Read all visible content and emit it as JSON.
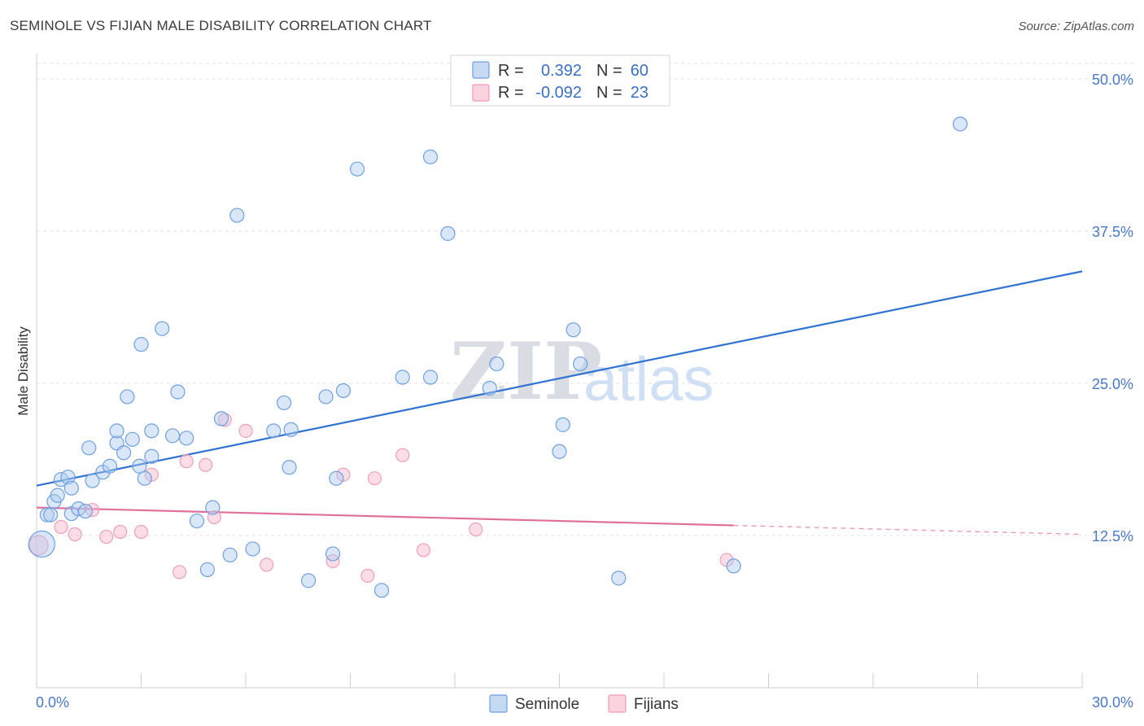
{
  "header": {
    "title": "SEMINOLE VS FIJIAN MALE DISABILITY CORRELATION CHART",
    "source": "Source: ZipAtlas.com"
  },
  "watermark": {
    "zip": "ZIP",
    "atlas": "atlas"
  },
  "legend": {
    "rows": [
      {
        "r_label": "R = ",
        "r_value": "0.392",
        "n_label": "N = ",
        "n_value": "60",
        "color": "#6fa0e0"
      },
      {
        "r_label": "R = ",
        "r_value": "-0.092",
        "n_label": "N = ",
        "n_value": "23",
        "color": "#f09ab4"
      }
    ]
  },
  "chart_data": {
    "type": "scatter",
    "title": "SEMINOLE VS FIJIAN MALE DISABILITY CORRELATION CHART",
    "xlabel": "",
    "ylabel": "Male Disability",
    "xlim": [
      0,
      30
    ],
    "ylim": [
      0,
      50
    ],
    "x_tick_labels": [
      "0.0%",
      "30.0%"
    ],
    "y_ticks": [
      12.5,
      25.0,
      37.5,
      50.0
    ],
    "y_tick_labels": [
      "12.5%",
      "25.0%",
      "37.5%",
      "50.0%"
    ],
    "grid": true,
    "series": [
      {
        "name": "Seminole",
        "color": "#6fa0e0",
        "trend": {
          "x": [
            0,
            30
          ],
          "y": [
            16.6,
            34.2
          ]
        },
        "points": [
          [
            0.15,
            11.8
          ],
          [
            0.3,
            14.2
          ],
          [
            0.4,
            14.2
          ],
          [
            0.5,
            15.3
          ],
          [
            0.6,
            15.8
          ],
          [
            0.7,
            17.1
          ],
          [
            0.9,
            17.3
          ],
          [
            1.0,
            14.3
          ],
          [
            1.2,
            14.7
          ],
          [
            1.4,
            14.5
          ],
          [
            1.0,
            16.4
          ],
          [
            1.5,
            19.7
          ],
          [
            1.6,
            17.0
          ],
          [
            1.9,
            17.7
          ],
          [
            2.1,
            18.2
          ],
          [
            2.3,
            20.1
          ],
          [
            2.3,
            21.1
          ],
          [
            2.5,
            19.3
          ],
          [
            2.6,
            23.9
          ],
          [
            2.75,
            20.4
          ],
          [
            2.95,
            18.2
          ],
          [
            3.0,
            28.2
          ],
          [
            3.1,
            17.2
          ],
          [
            3.3,
            21.1
          ],
          [
            3.3,
            19.0
          ],
          [
            3.6,
            29.5
          ],
          [
            3.9,
            20.7
          ],
          [
            4.05,
            24.3
          ],
          [
            4.3,
            20.5
          ],
          [
            4.6,
            13.7
          ],
          [
            4.9,
            9.7
          ],
          [
            5.05,
            14.8
          ],
          [
            5.3,
            22.1
          ],
          [
            5.55,
            10.9
          ],
          [
            5.75,
            38.8
          ],
          [
            6.2,
            11.4
          ],
          [
            6.8,
            21.1
          ],
          [
            7.1,
            23.4
          ],
          [
            7.25,
            18.1
          ],
          [
            7.3,
            21.2
          ],
          [
            7.8,
            8.8
          ],
          [
            8.3,
            23.9
          ],
          [
            8.5,
            11.0
          ],
          [
            8.6,
            17.2
          ],
          [
            8.8,
            24.4
          ],
          [
            9.2,
            42.6
          ],
          [
            9.9,
            8.0
          ],
          [
            10.5,
            25.5
          ],
          [
            11.3,
            43.6
          ],
          [
            11.3,
            25.5
          ],
          [
            11.8,
            37.3
          ],
          [
            13.0,
            24.6
          ],
          [
            13.2,
            26.6
          ],
          [
            15.0,
            19.4
          ],
          [
            15.1,
            21.6
          ],
          [
            15.4,
            29.4
          ],
          [
            15.6,
            26.6
          ],
          [
            16.7,
            9.0
          ],
          [
            20.0,
            10.0
          ],
          [
            26.5,
            46.3
          ]
        ]
      },
      {
        "name": "Fijians",
        "color": "#f09ab4",
        "trend": {
          "x": [
            0,
            30
          ],
          "y": [
            14.8,
            12.6
          ],
          "solid_until_x": 20.0
        },
        "points": [
          [
            0.05,
            11.7
          ],
          [
            0.7,
            13.2
          ],
          [
            1.1,
            12.6
          ],
          [
            1.6,
            14.6
          ],
          [
            2.0,
            12.4
          ],
          [
            2.4,
            12.8
          ],
          [
            3.0,
            12.8
          ],
          [
            3.3,
            17.5
          ],
          [
            4.1,
            9.5
          ],
          [
            4.3,
            18.6
          ],
          [
            4.85,
            18.3
          ],
          [
            5.1,
            14.0
          ],
          [
            5.4,
            22.0
          ],
          [
            6.0,
            21.1
          ],
          [
            6.6,
            10.1
          ],
          [
            8.5,
            10.4
          ],
          [
            8.8,
            17.5
          ],
          [
            9.5,
            9.2
          ],
          [
            9.7,
            17.2
          ],
          [
            10.5,
            19.1
          ],
          [
            11.1,
            11.3
          ],
          [
            12.6,
            13.0
          ],
          [
            19.8,
            10.5
          ]
        ]
      }
    ]
  },
  "bottom_legend": {
    "items": [
      {
        "label": "Seminole",
        "color": "#6fa0e0"
      },
      {
        "label": "Fijians",
        "color": "#f09ab4"
      }
    ]
  }
}
